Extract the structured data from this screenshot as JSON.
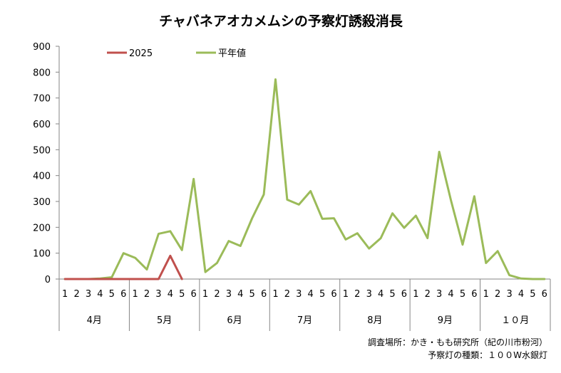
{
  "chart_data": {
    "type": "line",
    "title": "チャバネアオカメムシの予察灯誘殺消長",
    "xlabel": "",
    "ylabel": "",
    "ylim": [
      0,
      900
    ],
    "yticks": [
      0,
      100,
      200,
      300,
      400,
      500,
      600,
      700,
      800,
      900
    ],
    "grid": false,
    "legend_position": "top-left",
    "categories": [
      "1",
      "2",
      "3",
      "4",
      "5",
      "6",
      "1",
      "2",
      "3",
      "4",
      "5",
      "6",
      "1",
      "2",
      "3",
      "4",
      "5",
      "6",
      "1",
      "2",
      "3",
      "4",
      "5",
      "6",
      "1",
      "2",
      "3",
      "4",
      "5",
      "6",
      "1",
      "2",
      "3",
      "4",
      "5",
      "6",
      "1",
      "2",
      "3",
      "4",
      "5",
      "6"
    ],
    "month_groups": [
      {
        "label": "4月",
        "count": 6
      },
      {
        "label": "5月",
        "count": 6
      },
      {
        "label": "6月",
        "count": 6
      },
      {
        "label": "7月",
        "count": 6
      },
      {
        "label": "8月",
        "count": 6
      },
      {
        "label": "9月",
        "count": 6
      },
      {
        "label": "１０月",
        "count": 6
      }
    ],
    "series": [
      {
        "name": "2025",
        "color": "#c0504d",
        "values": [
          0,
          0,
          0,
          0,
          0,
          0,
          0,
          0,
          0,
          90,
          0,
          null,
          null,
          null,
          null,
          null,
          null,
          null,
          null,
          null,
          null,
          null,
          null,
          null,
          null,
          null,
          null,
          null,
          null,
          null,
          null,
          null,
          null,
          null,
          null,
          null,
          null,
          null,
          null,
          null,
          null,
          null
        ]
      },
      {
        "name": "平年値",
        "color": "#9bbb59",
        "values": [
          0,
          0,
          0,
          2,
          7,
          100,
          82,
          37,
          175,
          185,
          112,
          387,
          27,
          62,
          147,
          128,
          235,
          327,
          772,
          307,
          288,
          340,
          233,
          235,
          153,
          177,
          118,
          158,
          254,
          198,
          245,
          158,
          492,
          305,
          133,
          320,
          62,
          108,
          15,
          2,
          0,
          0
        ]
      }
    ],
    "annotations": [
      "調査場所：かき・もも研究所（紀の川市粉河）",
      "予察灯の種類：１００W水銀灯"
    ]
  }
}
